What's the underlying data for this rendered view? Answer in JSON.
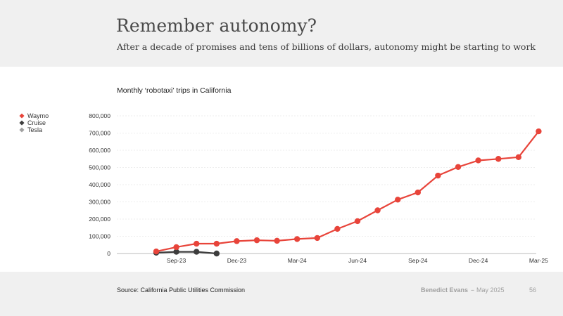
{
  "header": {
    "title": "Remember autonomy?",
    "subtitle": "After a decade of promises and tens of billions of dollars, autonomy might be starting to work"
  },
  "footer": {
    "source": "Source: California Public Utilities Commission",
    "author": "Benedict Evans",
    "separator": "--",
    "date": "May 2025",
    "page": "56"
  },
  "chart_data": {
    "type": "line",
    "title": "Monthly ‘robotaxi’ trips in California",
    "xlabel": "",
    "ylabel": "",
    "x": [
      "Aug-23",
      "Sep-23",
      "Oct-23",
      "Nov-23",
      "Dec-23",
      "Jan-24",
      "Feb-24",
      "Mar-24",
      "Apr-24",
      "May-24",
      "Jun-24",
      "Jul-24",
      "Aug-24",
      "Sep-24",
      "Oct-24",
      "Nov-24",
      "Dec-24",
      "Jan-25",
      "Feb-25",
      "Mar-25"
    ],
    "x_ticks": [
      "Sep-23",
      "Dec-23",
      "Mar-24",
      "Jun-24",
      "Sep-24",
      "Dec-24",
      "Mar-25"
    ],
    "y_ticks": [
      "0",
      "100,000",
      "200,000",
      "300,000",
      "400,000",
      "500,000",
      "600,000",
      "700,000",
      "800,000"
    ],
    "ylim": [
      0,
      800000
    ],
    "grid": "horizontal",
    "legend_position": "left",
    "series": [
      {
        "name": "Waymo",
        "color": "#e8443a",
        "values": [
          12000,
          37000,
          57000,
          57000,
          72000,
          77000,
          74000,
          84000,
          90000,
          143000,
          188000,
          251000,
          313000,
          355000,
          453000,
          503000,
          541000,
          550000,
          560000,
          710000
        ]
      },
      {
        "name": "Cruise",
        "color": "#3d3d3d",
        "values": [
          5000,
          10000,
          10000,
          0,
          null,
          null,
          null,
          null,
          null,
          null,
          null,
          null,
          null,
          null,
          null,
          null,
          null,
          null,
          null,
          null
        ]
      },
      {
        "name": "Tesla",
        "color": "#a0a0a0",
        "values": [
          null,
          null,
          null,
          null,
          null,
          null,
          null,
          null,
          null,
          null,
          null,
          null,
          null,
          null,
          null,
          null,
          null,
          null,
          null,
          null
        ]
      }
    ]
  }
}
